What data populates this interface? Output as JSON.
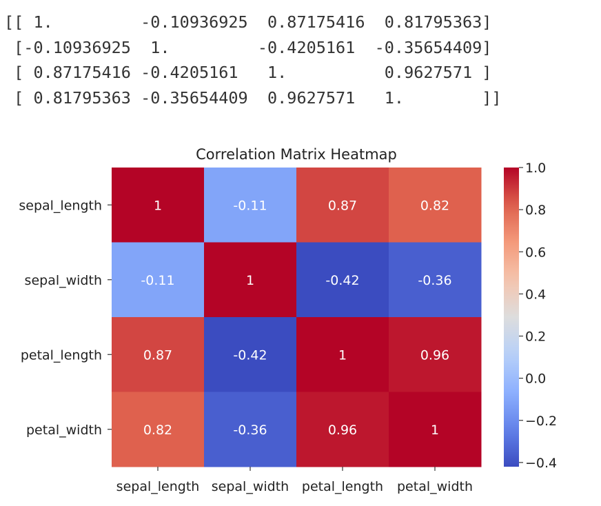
{
  "output_text": {
    "lines": [
      "[[ 1.         -0.10936925  0.87175416  0.81795363]",
      " [-0.10936925  1.         -0.4205161  -0.35654409]",
      " [ 0.87175416 -0.4205161   1.          0.9627571 ]",
      " [ 0.81795363 -0.35654409  0.9627571   1.        ]]"
    ]
  },
  "chart_data": {
    "type": "heatmap",
    "title": "Correlation Matrix Heatmap",
    "row_labels": [
      "sepal_length",
      "sepal_width",
      "petal_length",
      "petal_width"
    ],
    "col_labels": [
      "sepal_length",
      "sepal_width",
      "petal_length",
      "petal_width"
    ],
    "values": [
      [
        1.0,
        -0.10936925,
        0.87175416,
        0.81795363
      ],
      [
        -0.10936925,
        1.0,
        -0.4205161,
        -0.35654409
      ],
      [
        0.87175416,
        -0.4205161,
        1.0,
        0.9627571
      ],
      [
        0.81795363,
        -0.35654409,
        0.9627571,
        1.0
      ]
    ],
    "annotations": [
      [
        "1",
        "-0.11",
        "0.87",
        "0.82"
      ],
      [
        "-0.11",
        "1",
        "-0.42",
        "-0.36"
      ],
      [
        "0.87",
        "-0.42",
        "1",
        "0.96"
      ],
      [
        "0.82",
        "-0.36",
        "0.96",
        "1"
      ]
    ],
    "colormap": "coolwarm",
    "colorbar": {
      "range": [
        -0.42,
        1.0
      ],
      "ticks": [
        1.0,
        0.8,
        0.6,
        0.4,
        0.2,
        0.0,
        -0.2,
        -0.4
      ],
      "tick_labels": [
        "1.0",
        "0.8",
        "0.6",
        "0.4",
        "0.2",
        "0.0",
        "−0.2",
        "−0.4"
      ],
      "position": "right"
    },
    "annotation_color": "#ffffff"
  }
}
